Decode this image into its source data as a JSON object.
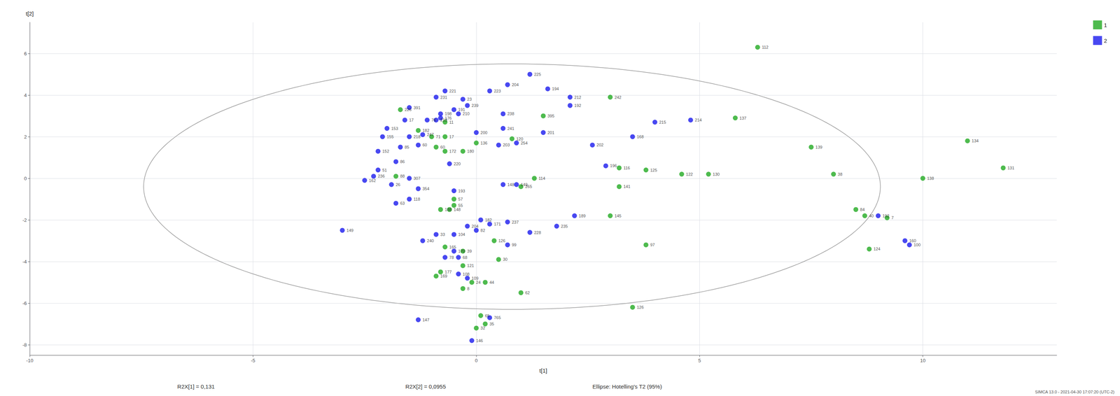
{
  "chart_data": {
    "type": "scatter",
    "xlabel": "t[1]",
    "ylabel": "t[2]",
    "xlim": [
      -10,
      13
    ],
    "ylim": [
      -8.5,
      7.5
    ],
    "xticks": [
      -10,
      -5,
      0,
      5,
      10
    ],
    "yticks": [
      -8,
      -6,
      -4,
      -2,
      0,
      2,
      4,
      6
    ],
    "grid": true,
    "legend": "top right",
    "annotations": [
      "R2X[1] = 0,131",
      "R2X[2] = 0,0955",
      "Ellipse: Hotelling's T2 (95%)",
      "SIMCA 13.0 - 2021-04-30 17:07:20 (UTC-2)"
    ],
    "ellipse": {
      "center": [
        0.8,
        -0.4
      ],
      "width": 16.5,
      "height": 11.8,
      "color": "#999999"
    },
    "series": [
      {
        "name": "1",
        "color": "#22aa22",
        "marker": "circle",
        "labels": [
          "112",
          "242",
          "226",
          "395",
          "137",
          "182",
          "11",
          "71",
          "17",
          "120",
          "136",
          "139",
          "60",
          "172",
          "180",
          "134",
          "116",
          "125",
          "122",
          "130",
          "38",
          "131",
          "138",
          "88",
          "57",
          "265",
          "114",
          "141",
          "84",
          "40",
          "7",
          "145",
          "97",
          "39",
          "30",
          "121",
          "177",
          "169",
          "44",
          "8",
          "62",
          "65",
          "35",
          "32",
          "126",
          "124",
          "55",
          "148",
          "24",
          "188",
          "165",
          "126"
        ],
        "x": [
          6.3,
          3.0,
          -1.7,
          1.5,
          5.8,
          -1.3,
          -0.7,
          -1.0,
          -0.7,
          0.8,
          0.0,
          7.5,
          -0.9,
          -0.7,
          -0.3,
          11.0,
          3.2,
          3.8,
          4.6,
          5.2,
          8.0,
          11.8,
          10.0,
          -1.8,
          -0.5,
          1.0,
          1.3,
          3.2,
          8.5,
          8.7,
          9.2,
          3.0,
          3.8,
          -0.3,
          0.5,
          -0.3,
          -0.8,
          -0.9,
          0.2,
          -0.3,
          1.0,
          0.1,
          0.2,
          0.0,
          3.5,
          8.8,
          -0.5,
          -0.6,
          -0.1,
          -0.8,
          -0.7,
          0.4
        ],
        "values": [
          6.3,
          3.9,
          3.3,
          3.0,
          2.9,
          2.3,
          2.7,
          2.0,
          2.0,
          1.9,
          1.7,
          1.5,
          1.5,
          1.3,
          1.3,
          1.8,
          0.5,
          0.4,
          0.2,
          0.2,
          0.2,
          0.5,
          0.0,
          0.1,
          -1.0,
          -0.4,
          0.0,
          -0.4,
          -1.5,
          -1.8,
          -1.9,
          -1.8,
          -3.2,
          -3.5,
          -3.9,
          -4.2,
          -4.5,
          -4.7,
          -5.0,
          -5.3,
          -5.5,
          -6.6,
          -7.0,
          -7.2,
          -6.2,
          -3.4,
          -1.3,
          -1.5,
          -5.0,
          -1.5,
          -3.3,
          -3.0
        ]
      },
      {
        "name": "2",
        "color": "#1a1aee",
        "marker": "circle",
        "labels": [
          "225",
          "204",
          "194",
          "223",
          "212",
          "192",
          "221",
          "391",
          "23",
          "239",
          "191",
          "198",
          "210",
          "238",
          "215",
          "214",
          "213",
          "76",
          "176",
          "241",
          "200",
          "201",
          "168",
          "153",
          "155",
          "218",
          "247",
          "254",
          "203",
          "202",
          "152",
          "220",
          "196",
          "236",
          "162",
          "193",
          "148",
          "149",
          "192",
          "237",
          "235",
          "189",
          "171",
          "182",
          "228",
          "149",
          "99",
          "108",
          "109",
          "147",
          "765",
          "146",
          "160",
          "100",
          "307",
          "354",
          "240",
          "170",
          "231",
          "17",
          "60",
          "85",
          "86",
          "51",
          "26",
          "118",
          "63",
          "104",
          "82",
          "204",
          "33",
          "78",
          "68"
        ],
        "x": [
          1.2,
          0.7,
          1.6,
          0.3,
          2.1,
          2.1,
          -0.7,
          -1.5,
          -0.3,
          -0.2,
          -0.5,
          -0.8,
          -0.4,
          0.6,
          4.0,
          4.8,
          -0.9,
          -1.1,
          -0.8,
          0.6,
          0.0,
          1.5,
          3.5,
          -2.0,
          -2.1,
          -1.5,
          -1.2,
          0.9,
          0.5,
          2.6,
          -2.2,
          -0.6,
          2.9,
          -2.3,
          -2.5,
          -0.5,
          0.6,
          0.9,
          9.0,
          0.7,
          1.8,
          2.2,
          0.3,
          0.1,
          1.2,
          -3.0,
          0.7,
          -0.4,
          -0.2,
          -1.3,
          0.3,
          -0.1,
          9.6,
          9.7,
          -1.5,
          -1.3,
          -1.2,
          -0.5,
          -0.9,
          -1.6,
          -1.3,
          -1.7,
          -1.8,
          -2.2,
          -1.9,
          -1.5,
          -1.8,
          -0.5,
          0.0,
          -0.2,
          -0.9,
          -0.7,
          -0.4
        ],
        "values": [
          5.0,
          4.5,
          4.3,
          4.2,
          3.9,
          3.5,
          4.2,
          3.4,
          3.8,
          3.5,
          3.3,
          3.1,
          3.1,
          3.1,
          2.7,
          2.8,
          2.8,
          2.8,
          2.9,
          2.4,
          2.2,
          2.2,
          2.0,
          2.4,
          2.0,
          2.0,
          2.1,
          1.7,
          1.6,
          1.6,
          1.3,
          0.7,
          0.6,
          0.1,
          -0.1,
          -0.6,
          -0.3,
          -0.3,
          -1.8,
          -2.1,
          -2.3,
          -1.8,
          -2.2,
          -2.0,
          -2.6,
          -2.5,
          -3.2,
          -4.6,
          -4.8,
          -6.8,
          -6.7,
          -7.8,
          -3.0,
          -3.2,
          0.0,
          -0.5,
          -3.0,
          -3.5,
          3.9,
          2.8,
          1.6,
          1.5,
          0.8,
          0.4,
          -0.3,
          -1.0,
          -1.2,
          -2.7,
          -2.5,
          -2.3,
          -2.7,
          -3.8,
          -3.8
        ]
      }
    ]
  }
}
